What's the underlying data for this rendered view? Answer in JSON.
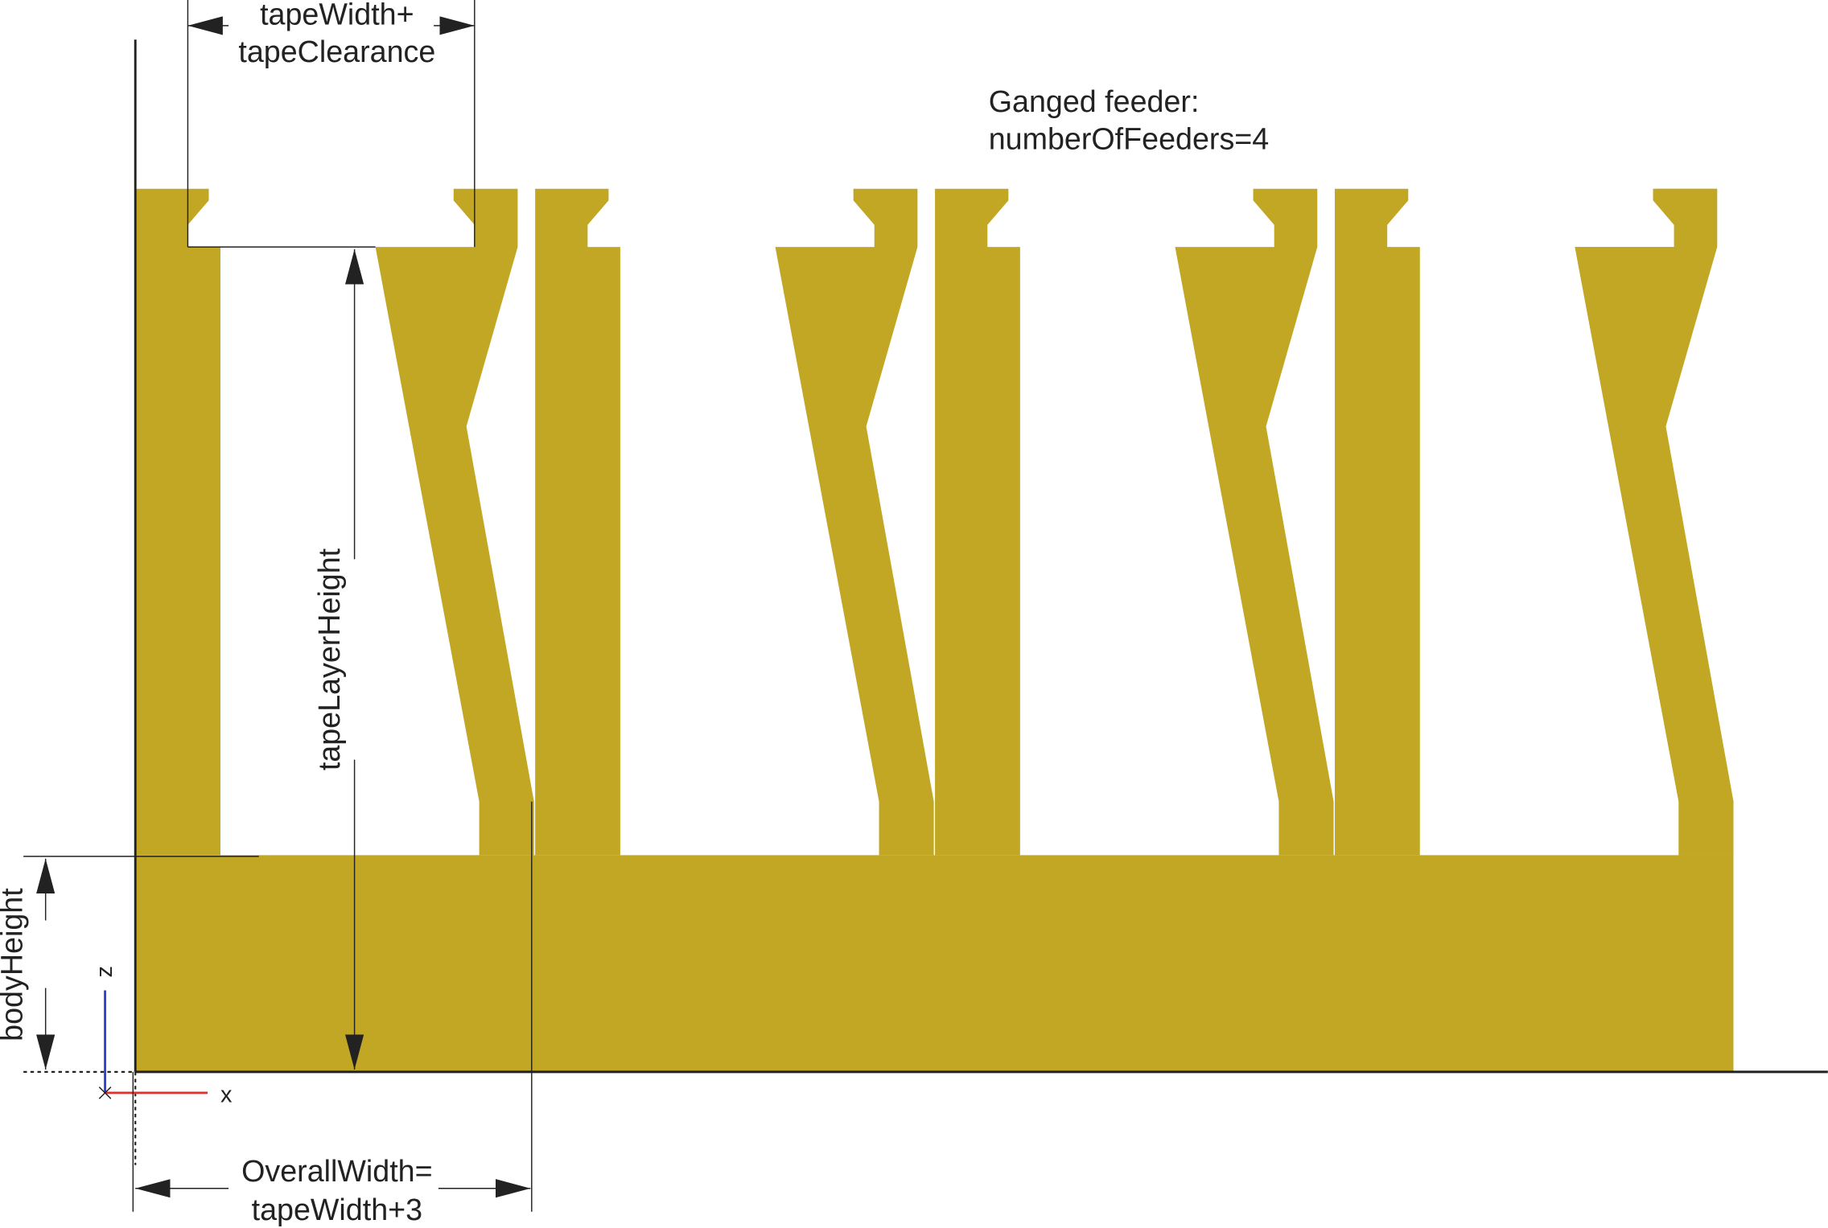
{
  "title_lines": [
    "Ganged feeder:",
    "numberOfFeeders=4"
  ],
  "dimensions": {
    "top_width": [
      "tapeWidth+",
      "tapeClearance"
    ],
    "tape_layer_height": "tapeLayerHeight",
    "body_height": "bodyHeight",
    "overall_width": [
      "OverallWidth=",
      "tapeWidth+3"
    ]
  },
  "axes": {
    "z": "z",
    "x": "x"
  },
  "feeder_count": 4,
  "colors": {
    "body": "#c2a724",
    "axis_z": "#3040d8",
    "axis_x": "#e03030",
    "lines": "#222222",
    "background": "#ffffff"
  }
}
